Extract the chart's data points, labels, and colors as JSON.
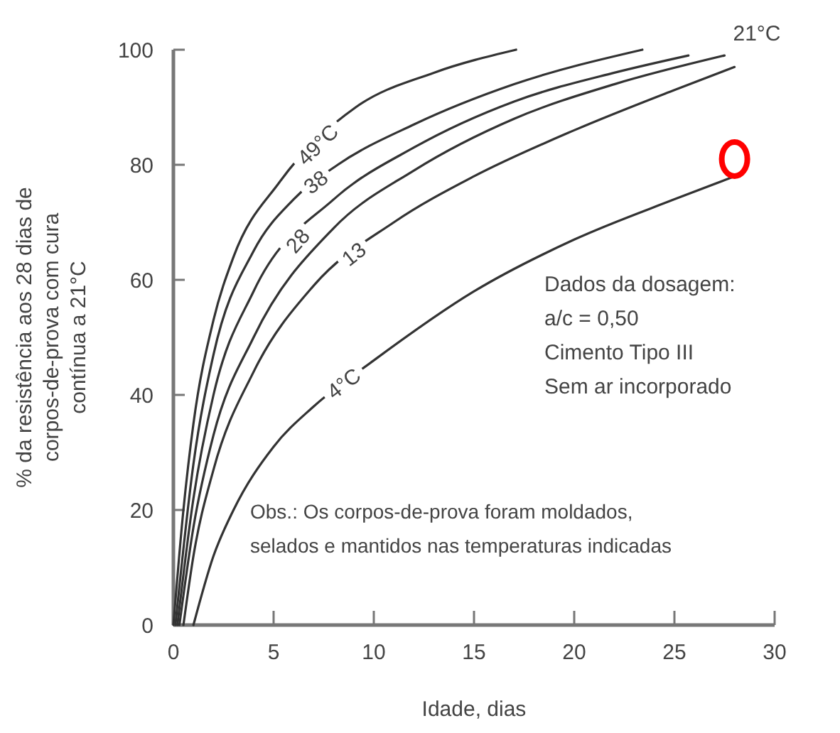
{
  "chart_data": {
    "type": "line",
    "xlabel": "Idade, dias",
    "ylabel": "% da resistência aos 28 dias de corpos-de-prova com cura contínua a 21°C",
    "xlim": [
      0,
      30
    ],
    "xticks": [
      0,
      5,
      10,
      15,
      20,
      25,
      30
    ],
    "ylim": [
      0,
      100
    ],
    "yticks": [
      0,
      20,
      40,
      60,
      80,
      100
    ],
    "marker": "none",
    "line_style": "solid",
    "series": [
      {
        "name": "49°C",
        "color": "#333333",
        "x": [
          0,
          0.5,
          1,
          2,
          3,
          5.3,
          9.1,
          13,
          17.1
        ],
        "values": [
          0,
          20,
          35,
          53,
          64,
          77,
          90,
          96,
          100
        ]
      },
      {
        "name": "38",
        "color": "#333333",
        "x": [
          0.1,
          1,
          2,
          4,
          6,
          8.2,
          12,
          17,
          23.4
        ],
        "values": [
          0,
          28,
          47,
          65,
          74,
          80,
          87,
          94,
          100
        ]
      },
      {
        "name": "28",
        "color": "#333333",
        "x": [
          0.2,
          1,
          2,
          4,
          8,
          12,
          17,
          22,
          25.7
        ],
        "values": [
          0,
          22,
          40,
          58,
          74,
          83,
          91,
          96,
          99
        ]
      },
      {
        "name": "21°C",
        "color": "#333333",
        "x": [
          0.3,
          1,
          2,
          4,
          8,
          12,
          17,
          22,
          27.5
        ],
        "values": [
          0,
          17,
          33,
          50,
          69,
          79,
          88,
          94,
          99
        ]
      },
      {
        "name": "13",
        "color": "#333333",
        "x": [
          0.5,
          1,
          2,
          4,
          7,
          11,
          15,
          20,
          25,
          28
        ],
        "values": [
          0,
          12,
          27,
          44,
          59,
          70,
          78,
          86,
          93,
          97
        ]
      },
      {
        "name": "4°C",
        "color": "#333333",
        "x": [
          1,
          2,
          3,
          5,
          7,
          10,
          15,
          20,
          25,
          28
        ],
        "values": [
          0,
          12,
          20,
          31,
          38,
          46,
          58,
          67,
          74,
          78
        ]
      },
      {
        "type": "scatter",
        "color": "#ff0000",
        "marker": "circle",
        "x": [
          28
        ],
        "values": [
          81
        ]
      }
    ],
    "annotations": [
      "Dados da dosagem:",
      "a/c = 0,50",
      "Cimento Tipo III",
      "Sem ar incorporado",
      "Obs.: Os corpos-de-prova foram moldados,",
      "selados e mantidos nas temperaturas indicadas"
    ]
  }
}
